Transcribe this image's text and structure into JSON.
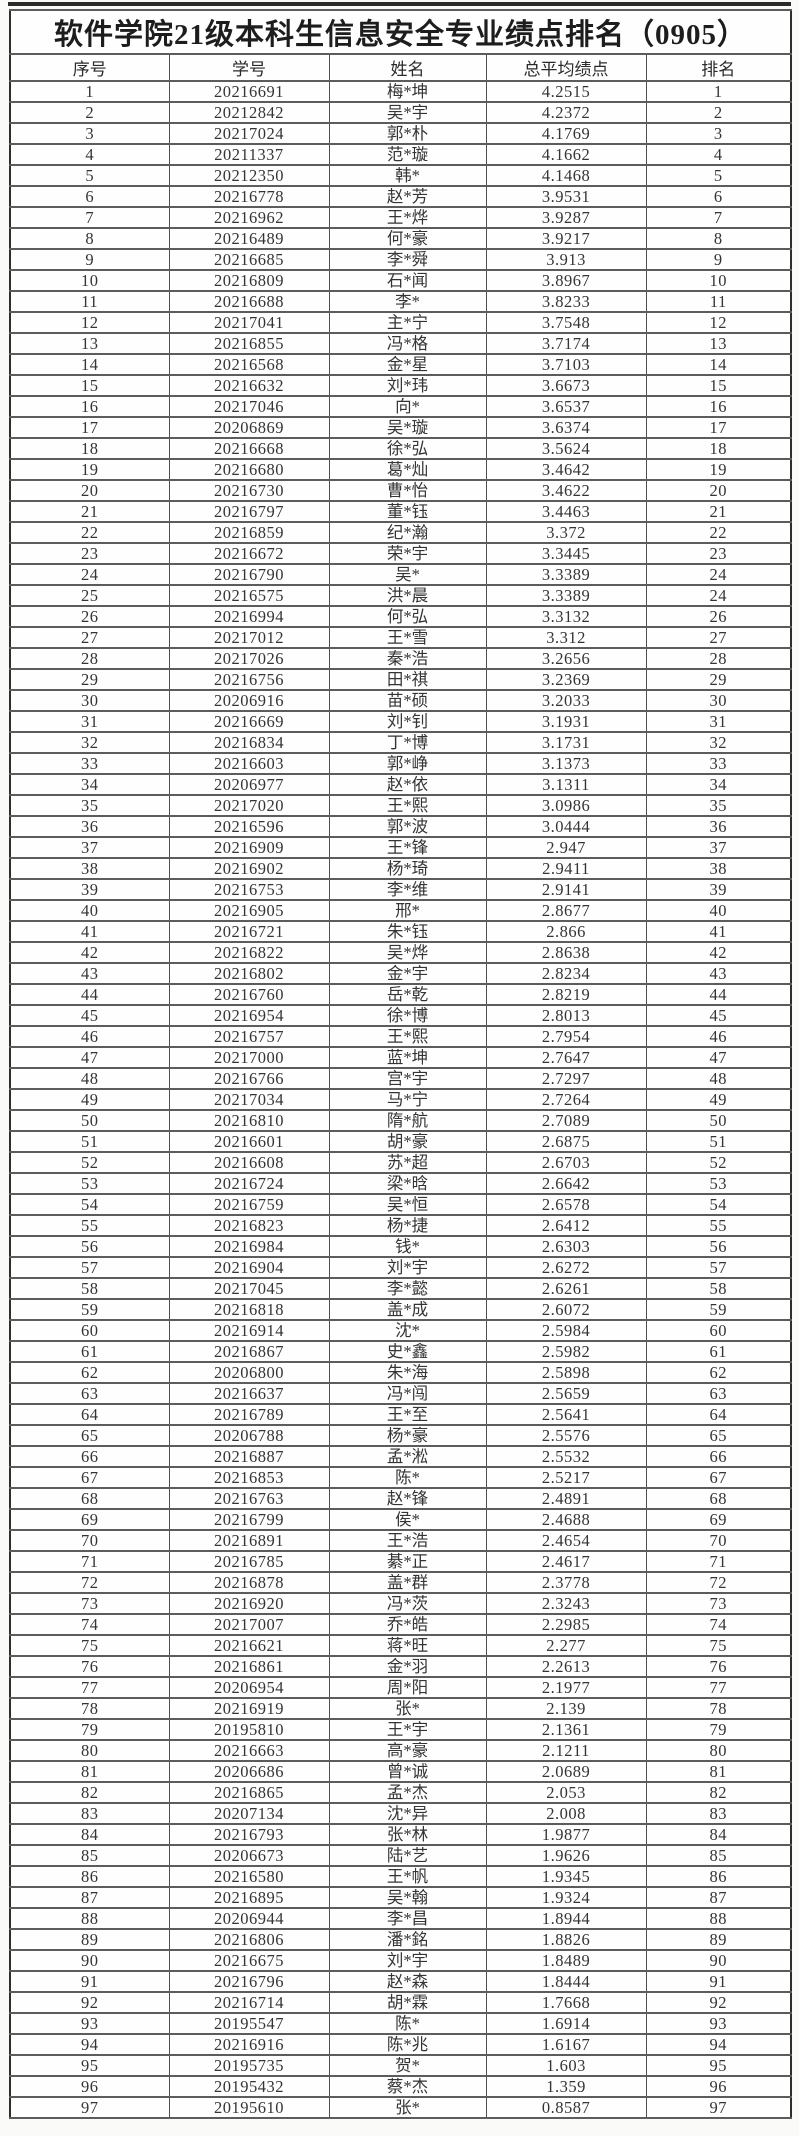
{
  "page": {
    "background_color": "#fafaf8",
    "scan_line_color": "#2b2b2b",
    "outer_border_color": "#2e2e2e",
    "inner_border_color": "#5c5c5c",
    "text_color": "#242424"
  },
  "title": "软件学院21级本科生信息安全专业绩点排名（0905）",
  "table": {
    "headers": [
      "序号",
      "学号",
      "姓名",
      "总平均绩点",
      "排名"
    ],
    "rows": [
      [
        "1",
        "20216691",
        "梅*坤",
        "4.2515",
        "1"
      ],
      [
        "2",
        "20212842",
        "吴*宇",
        "4.2372",
        "2"
      ],
      [
        "3",
        "20217024",
        "郭*朴",
        "4.1769",
        "3"
      ],
      [
        "4",
        "20211337",
        "范*璇",
        "4.1662",
        "4"
      ],
      [
        "5",
        "20212350",
        "韩*",
        "4.1468",
        "5"
      ],
      [
        "6",
        "20216778",
        "赵*芳",
        "3.9531",
        "6"
      ],
      [
        "7",
        "20216962",
        "王*烨",
        "3.9287",
        "7"
      ],
      [
        "8",
        "20216489",
        "何*豪",
        "3.9217",
        "8"
      ],
      [
        "9",
        "20216685",
        "李*舜",
        "3.913",
        "9"
      ],
      [
        "10",
        "20216809",
        "石*闻",
        "3.8967",
        "10"
      ],
      [
        "11",
        "20216688",
        "李*",
        "3.8233",
        "11"
      ],
      [
        "12",
        "20217041",
        "主*宁",
        "3.7548",
        "12"
      ],
      [
        "13",
        "20216855",
        "冯*格",
        "3.7174",
        "13"
      ],
      [
        "14",
        "20216568",
        "金*星",
        "3.7103",
        "14"
      ],
      [
        "15",
        "20216632",
        "刘*玮",
        "3.6673",
        "15"
      ],
      [
        "16",
        "20217046",
        "向*",
        "3.6537",
        "16"
      ],
      [
        "17",
        "20206869",
        "吴*璇",
        "3.6374",
        "17"
      ],
      [
        "18",
        "20216668",
        "徐*弘",
        "3.5624",
        "18"
      ],
      [
        "19",
        "20216680",
        "葛*灿",
        "3.4642",
        "19"
      ],
      [
        "20",
        "20216730",
        "曹*怡",
        "3.4622",
        "20"
      ],
      [
        "21",
        "20216797",
        "董*钰",
        "3.4463",
        "21"
      ],
      [
        "22",
        "20216859",
        "纪*瀚",
        "3.372",
        "22"
      ],
      [
        "23",
        "20216672",
        "荣*宇",
        "3.3445",
        "23"
      ],
      [
        "24",
        "20216790",
        "吴*",
        "3.3389",
        "24"
      ],
      [
        "25",
        "20216575",
        "洪*晨",
        "3.3389",
        "24"
      ],
      [
        "26",
        "20216994",
        "何*弘",
        "3.3132",
        "26"
      ],
      [
        "27",
        "20217012",
        "王*雪",
        "3.312",
        "27"
      ],
      [
        "28",
        "20217026",
        "秦*浩",
        "3.2656",
        "28"
      ],
      [
        "29",
        "20216756",
        "田*祺",
        "3.2369",
        "29"
      ],
      [
        "30",
        "20206916",
        "苗*硕",
        "3.2033",
        "30"
      ],
      [
        "31",
        "20216669",
        "刘*钊",
        "3.1931",
        "31"
      ],
      [
        "32",
        "20216834",
        "丁*博",
        "3.1731",
        "32"
      ],
      [
        "33",
        "20216603",
        "郭*峥",
        "3.1373",
        "33"
      ],
      [
        "34",
        "20206977",
        "赵*依",
        "3.1311",
        "34"
      ],
      [
        "35",
        "20217020",
        "王*熙",
        "3.0986",
        "35"
      ],
      [
        "36",
        "20216596",
        "郭*波",
        "3.0444",
        "36"
      ],
      [
        "37",
        "20216909",
        "王*锋",
        "2.947",
        "37"
      ],
      [
        "38",
        "20216902",
        "杨*琦",
        "2.9411",
        "38"
      ],
      [
        "39",
        "20216753",
        "李*维",
        "2.9141",
        "39"
      ],
      [
        "40",
        "20216905",
        "邢*",
        "2.8677",
        "40"
      ],
      [
        "41",
        "20216721",
        "朱*钰",
        "2.866",
        "41"
      ],
      [
        "42",
        "20216822",
        "吴*烨",
        "2.8638",
        "42"
      ],
      [
        "43",
        "20216802",
        "金*宇",
        "2.8234",
        "43"
      ],
      [
        "44",
        "20216760",
        "岳*乾",
        "2.8219",
        "44"
      ],
      [
        "45",
        "20216954",
        "徐*博",
        "2.8013",
        "45"
      ],
      [
        "46",
        "20216757",
        "王*熙",
        "2.7954",
        "46"
      ],
      [
        "47",
        "20217000",
        "蓝*坤",
        "2.7647",
        "47"
      ],
      [
        "48",
        "20216766",
        "宫*宇",
        "2.7297",
        "48"
      ],
      [
        "49",
        "20217034",
        "马*宁",
        "2.7264",
        "49"
      ],
      [
        "50",
        "20216810",
        "隋*航",
        "2.7089",
        "50"
      ],
      [
        "51",
        "20216601",
        "胡*豪",
        "2.6875",
        "51"
      ],
      [
        "52",
        "20216608",
        "苏*超",
        "2.6703",
        "52"
      ],
      [
        "53",
        "20216724",
        "梁*晗",
        "2.6642",
        "53"
      ],
      [
        "54",
        "20216759",
        "吴*恒",
        "2.6578",
        "54"
      ],
      [
        "55",
        "20216823",
        "杨*捷",
        "2.6412",
        "55"
      ],
      [
        "56",
        "20216984",
        "钱*",
        "2.6303",
        "56"
      ],
      [
        "57",
        "20216904",
        "刘*宇",
        "2.6272",
        "57"
      ],
      [
        "58",
        "20217045",
        "李*懿",
        "2.6261",
        "58"
      ],
      [
        "59",
        "20216818",
        "盖*成",
        "2.6072",
        "59"
      ],
      [
        "60",
        "20216914",
        "沈*",
        "2.5984",
        "60"
      ],
      [
        "61",
        "20216867",
        "史*鑫",
        "2.5982",
        "61"
      ],
      [
        "62",
        "20206800",
        "朱*海",
        "2.5898",
        "62"
      ],
      [
        "63",
        "20216637",
        "冯*闯",
        "2.5659",
        "63"
      ],
      [
        "64",
        "20216789",
        "王*至",
        "2.5641",
        "64"
      ],
      [
        "65",
        "20206788",
        "杨*豪",
        "2.5576",
        "65"
      ],
      [
        "66",
        "20216887",
        "孟*淞",
        "2.5532",
        "66"
      ],
      [
        "67",
        "20216853",
        "陈*",
        "2.5217",
        "67"
      ],
      [
        "68",
        "20216763",
        "赵*锋",
        "2.4891",
        "68"
      ],
      [
        "69",
        "20216799",
        "侯*",
        "2.4688",
        "69"
      ],
      [
        "70",
        "20216891",
        "王*浩",
        "2.4654",
        "70"
      ],
      [
        "71",
        "20216785",
        "綦*正",
        "2.4617",
        "71"
      ],
      [
        "72",
        "20216878",
        "盖*群",
        "2.3778",
        "72"
      ],
      [
        "73",
        "20216920",
        "冯*茨",
        "2.3243",
        "73"
      ],
      [
        "74",
        "20217007",
        "乔*皓",
        "2.2985",
        "74"
      ],
      [
        "75",
        "20216621",
        "蒋*旺",
        "2.277",
        "75"
      ],
      [
        "76",
        "20216861",
        "金*羽",
        "2.2613",
        "76"
      ],
      [
        "77",
        "20206954",
        "周*阳",
        "2.1977",
        "77"
      ],
      [
        "78",
        "20216919",
        "张*",
        "2.139",
        "78"
      ],
      [
        "79",
        "20195810",
        "王*宇",
        "2.1361",
        "79"
      ],
      [
        "80",
        "20216663",
        "高*豪",
        "2.1211",
        "80"
      ],
      [
        "81",
        "20206686",
        "曾*诚",
        "2.0689",
        "81"
      ],
      [
        "82",
        "20216865",
        "孟*杰",
        "2.053",
        "82"
      ],
      [
        "83",
        "20207134",
        "沈*异",
        "2.008",
        "83"
      ],
      [
        "84",
        "20216793",
        "张*林",
        "1.9877",
        "84"
      ],
      [
        "85",
        "20206673",
        "陆*艺",
        "1.9626",
        "85"
      ],
      [
        "86",
        "20216580",
        "王*帆",
        "1.9345",
        "86"
      ],
      [
        "87",
        "20216895",
        "吴*翰",
        "1.9324",
        "87"
      ],
      [
        "88",
        "20206944",
        "李*昌",
        "1.8944",
        "88"
      ],
      [
        "89",
        "20216806",
        "潘*銘",
        "1.8826",
        "89"
      ],
      [
        "90",
        "20216675",
        "刘*宇",
        "1.8489",
        "90"
      ],
      [
        "91",
        "20216796",
        "赵*森",
        "1.8444",
        "91"
      ],
      [
        "92",
        "20216714",
        "胡*霖",
        "1.7668",
        "92"
      ],
      [
        "93",
        "20195547",
        "陈*",
        "1.6914",
        "93"
      ],
      [
        "94",
        "20216916",
        "陈*兆",
        "1.6167",
        "94"
      ],
      [
        "95",
        "20195735",
        "贺*",
        "1.603",
        "95"
      ],
      [
        "96",
        "20195432",
        "蔡*杰",
        "1.359",
        "96"
      ],
      [
        "97",
        "20195610",
        "张*",
        "0.8587",
        "97"
      ]
    ]
  }
}
